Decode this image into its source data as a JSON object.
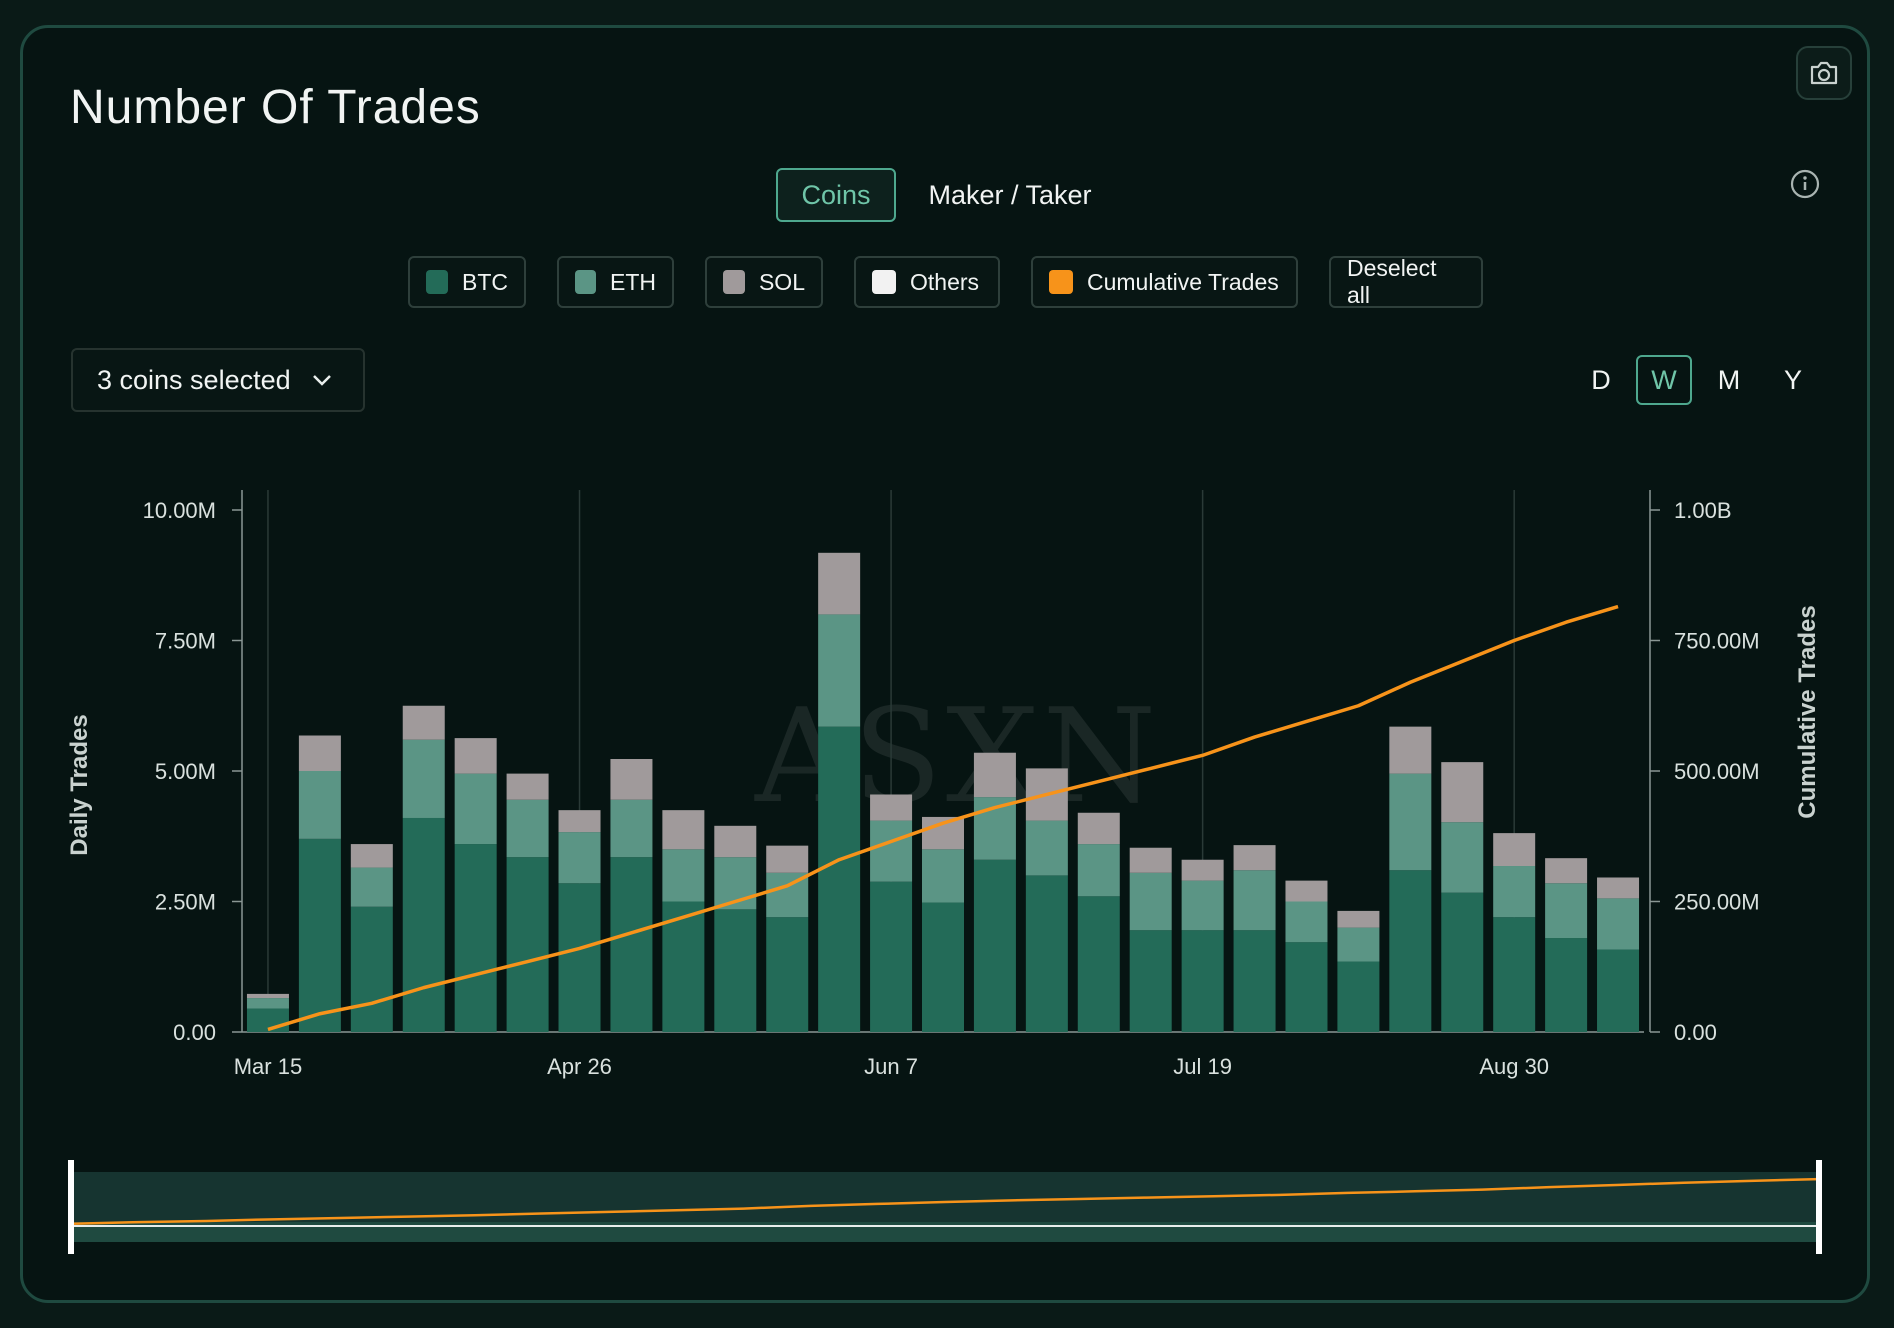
{
  "title": "Number Of Trades",
  "tabs": [
    {
      "label": "Coins",
      "active": true
    },
    {
      "label": "Maker / Taker",
      "active": false
    }
  ],
  "legend": [
    {
      "label": "BTC",
      "color": "#236b58"
    },
    {
      "label": "ETH",
      "color": "#5b9585"
    },
    {
      "label": "SOL",
      "color": "#a09a9b"
    },
    {
      "label": "Others",
      "color": "#f2f2f2"
    },
    {
      "label": "Cumulative Trades",
      "color": "#f7931a"
    },
    {
      "label": "Deselect all"
    }
  ],
  "coin_select": {
    "label": "3 coins selected"
  },
  "periods": [
    {
      "label": "D",
      "active": false
    },
    {
      "label": "W",
      "active": true
    },
    {
      "label": "M",
      "active": false
    },
    {
      "label": "Y",
      "active": false
    }
  ],
  "watermark": "ASXN",
  "icons": {
    "camera": "camera-icon",
    "info": "info-icon",
    "dropdown": "chevron-down-icon"
  },
  "chart_data": {
    "type": "bar",
    "stacked": true,
    "ylabel": "Daily Trades",
    "y2label": "Cumulative Trades",
    "ylim": [
      0,
      10000000
    ],
    "y2lim": [
      0,
      1000000000
    ],
    "yticks": [
      "0.00",
      "2.50M",
      "5.00M",
      "7.50M",
      "10.00M"
    ],
    "y2ticks": [
      "0.00",
      "250.00M",
      "500.00M",
      "750.00M",
      "1.00B"
    ],
    "xticks": [
      "Mar 15",
      "Apr 26",
      "Jun 7",
      "Jul 19",
      "Aug 30"
    ],
    "xtick_index": [
      0,
      6,
      12,
      18,
      24
    ],
    "grid": "vertical",
    "series": [
      {
        "name": "BTC",
        "color": "#236b58",
        "values": [
          450000,
          3700000,
          2400000,
          4100000,
          3600000,
          3350000,
          2850000,
          3350000,
          2500000,
          2350000,
          2200000,
          5850000,
          2880000,
          2480000,
          3300000,
          3000000,
          2600000,
          1950000,
          1950000,
          1950000,
          1720000,
          1350000,
          3100000,
          2670000,
          2200000,
          1800000,
          1580000
        ]
      },
      {
        "name": "ETH",
        "color": "#5b9585",
        "values": [
          200000,
          1300000,
          750000,
          1500000,
          1350000,
          1100000,
          980000,
          1100000,
          1000000,
          1000000,
          850000,
          2150000,
          1170000,
          1020000,
          1200000,
          1050000,
          1000000,
          1100000,
          950000,
          1150000,
          780000,
          650000,
          1850000,
          1350000,
          980000,
          1050000,
          980000
        ]
      },
      {
        "name": "SOL",
        "color": "#a09a9b",
        "values": [
          80000,
          680000,
          450000,
          650000,
          680000,
          500000,
          420000,
          780000,
          750000,
          600000,
          520000,
          1180000,
          500000,
          620000,
          850000,
          1000000,
          600000,
          480000,
          400000,
          480000,
          400000,
          320000,
          900000,
          1150000,
          630000,
          480000,
          400000
        ]
      },
      {
        "name": "Cumulative Trades",
        "color": "#f7931a",
        "type": "line",
        "axis": "y2",
        "values": [
          5000000,
          35000000,
          55000000,
          85000000,
          110000000,
          135000000,
          160000000,
          190000000,
          220000000,
          250000000,
          280000000,
          330000000,
          365000000,
          400000000,
          430000000,
          455000000,
          480000000,
          505000000,
          530000000,
          565000000,
          595000000,
          625000000,
          670000000,
          710000000,
          750000000,
          785000000,
          815000000
        ]
      }
    ]
  }
}
